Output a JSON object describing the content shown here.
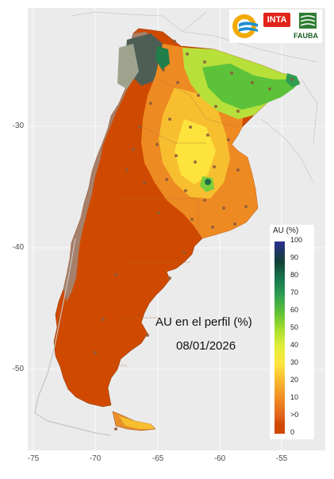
{
  "map": {
    "title": "AU en el perfil (%)",
    "date": "08/01/2026",
    "x_ticks": [
      -75,
      -70,
      -65,
      -60,
      -55
    ],
    "y_ticks": [
      -30,
      -40,
      -50
    ],
    "lon_range": [
      -77,
      -52.5
    ],
    "lat_range": [
      -56.5,
      -20.3
    ],
    "background_color": "#ebebeb",
    "grid_color": "#ffffff"
  },
  "legend": {
    "title": "AU (%)",
    "labels": [
      "100",
      "90",
      "80",
      "70",
      "60",
      "50",
      "40",
      "30",
      "20",
      "10",
      ">0",
      "0"
    ],
    "colors": {
      "low": "#cf4a00",
      "mid": "#fde33c",
      "high": "#17734c",
      "max": "#2b2f92"
    }
  },
  "logos": {
    "inta": "INTA",
    "fauba": "FAUBA",
    "icons": [
      "ore-logo-icon",
      "inta-logo-icon",
      "fauba-logo-icon"
    ]
  }
}
